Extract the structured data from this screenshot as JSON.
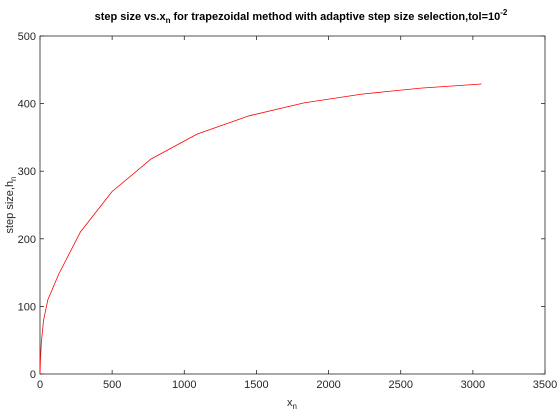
{
  "chart_data": {
    "type": "line",
    "title": {
      "prefix": "step size vs.x",
      "prefix_sub": "n",
      "middle": " for trapezoidal method with adaptive step size selection,tol=10",
      "sup": "-2"
    },
    "xlabel": {
      "base": "x",
      "sub": "n"
    },
    "ylabel": {
      "base": "step size,h",
      "sub": "n"
    },
    "xlim": [
      0,
      3500
    ],
    "ylim": [
      0,
      500
    ],
    "xticks": [
      0,
      500,
      1000,
      1500,
      2000,
      2500,
      3000,
      3500
    ],
    "yticks": [
      0,
      100,
      200,
      300,
      400,
      500
    ],
    "grid": false,
    "series": [
      {
        "color": "#ff0000",
        "x": [
          0,
          3,
          10,
          25,
          55,
          130,
          280,
          500,
          770,
          1090,
          1450,
          1830,
          2230,
          2640,
          3060
        ],
        "y": [
          0,
          20,
          48,
          80,
          110,
          148,
          210,
          270,
          318,
          355,
          382,
          401,
          414,
          423,
          429
        ]
      }
    ]
  }
}
